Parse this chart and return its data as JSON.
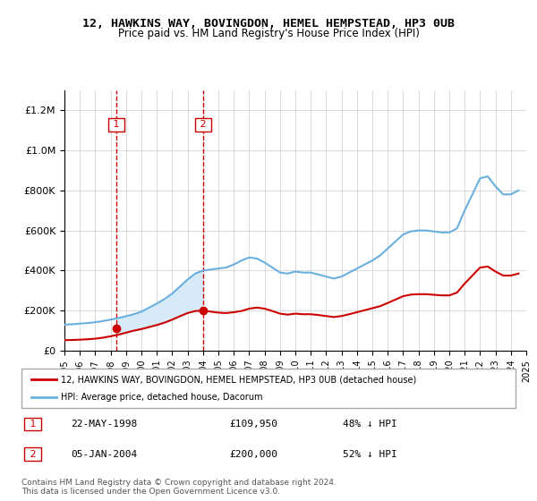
{
  "title": "12, HAWKINS WAY, BOVINGDON, HEMEL HEMPSTEAD, HP3 0UB",
  "subtitle": "Price paid vs. HM Land Registry's House Price Index (HPI)",
  "legend_line1": "12, HAWKINS WAY, BOVINGDON, HEMEL HEMPSTEAD, HP3 0UB (detached house)",
  "legend_line2": "HPI: Average price, detached house, Dacorum",
  "footer": "Contains HM Land Registry data © Crown copyright and database right 2024.\nThis data is licensed under the Open Government Licence v3.0.",
  "transaction1_label": "1",
  "transaction1_date": "22-MAY-1998",
  "transaction1_price": "£109,950",
  "transaction1_hpi": "48% ↓ HPI",
  "transaction2_label": "2",
  "transaction2_date": "05-JAN-2004",
  "transaction2_price": "£200,000",
  "transaction2_hpi": "52% ↓ HPI",
  "hpi_color": "#6ab0de",
  "price_color": "#cc0000",
  "shaded_color": "#d6eaf8",
  "dashed_color": "#cc0000",
  "background_color": "#ffffff",
  "hpi_x": [
    1995,
    1995.5,
    1996,
    1996.5,
    1997,
    1997.5,
    1998,
    1998.5,
    1999,
    1999.5,
    2000,
    2000.5,
    2001,
    2001.5,
    2002,
    2002.5,
    2003,
    2003.5,
    2004,
    2004.5,
    2005,
    2005.5,
    2006,
    2006.5,
    2007,
    2007.5,
    2008,
    2008.5,
    2009,
    2009.5,
    2010,
    2010.5,
    2011,
    2011.5,
    2012,
    2012.5,
    2013,
    2013.5,
    2014,
    2014.5,
    2015,
    2015.5,
    2016,
    2016.5,
    2017,
    2017.5,
    2018,
    2018.5,
    2019,
    2019.5,
    2020,
    2020.5,
    2021,
    2021.5,
    2022,
    2022.5,
    2023,
    2023.5,
    2024,
    2024.5
  ],
  "hpi_y": [
    130000,
    132000,
    135000,
    138000,
    142000,
    148000,
    155000,
    163000,
    172000,
    182000,
    195000,
    215000,
    235000,
    258000,
    285000,
    320000,
    355000,
    385000,
    400000,
    405000,
    410000,
    415000,
    430000,
    450000,
    465000,
    460000,
    440000,
    415000,
    390000,
    385000,
    395000,
    390000,
    390000,
    380000,
    370000,
    360000,
    370000,
    390000,
    410000,
    430000,
    450000,
    475000,
    510000,
    545000,
    580000,
    595000,
    600000,
    600000,
    595000,
    590000,
    590000,
    610000,
    700000,
    780000,
    860000,
    870000,
    820000,
    780000,
    780000,
    800000
  ],
  "price_x": [
    1995,
    1995.5,
    1996,
    1996.5,
    1997,
    1997.5,
    1998,
    1998.5,
    1999,
    1999.5,
    2000,
    2000.5,
    2001,
    2001.5,
    2002,
    2002.5,
    2003,
    2003.5,
    2004,
    2004.5,
    2005,
    2005.5,
    2006,
    2006.5,
    2007,
    2007.5,
    2008,
    2008.5,
    2009,
    2009.5,
    2010,
    2010.5,
    2011,
    2011.5,
    2012,
    2012.5,
    2013,
    2013.5,
    2014,
    2014.5,
    2015,
    2015.5,
    2016,
    2016.5,
    2017,
    2017.5,
    2018,
    2018.5,
    2019,
    2019.5,
    2020,
    2020.5,
    2021,
    2021.5,
    2022,
    2022.5,
    2023,
    2023.5,
    2024,
    2024.5
  ],
  "price_y": [
    52800,
    53500,
    55000,
    57000,
    60000,
    65000,
    72000,
    80000,
    90000,
    100000,
    108000,
    118000,
    128000,
    140000,
    155000,
    172000,
    188000,
    198000,
    200000,
    195000,
    190000,
    188000,
    192000,
    198000,
    210000,
    215000,
    210000,
    198000,
    185000,
    180000,
    185000,
    182000,
    182000,
    178000,
    173000,
    168000,
    173000,
    182000,
    192000,
    202000,
    212000,
    222000,
    238000,
    255000,
    272000,
    280000,
    282000,
    282000,
    279000,
    276000,
    276000,
    290000,
    335000,
    375000,
    415000,
    420000,
    395000,
    375000,
    375000,
    385000
  ],
  "transaction1_x": 1998.38,
  "transaction1_y": 109950,
  "transaction2_x": 2004.0,
  "transaction2_y": 200000,
  "shade_x1": 1998.38,
  "shade_x2": 2004.0,
  "xlim": [
    1995,
    2025
  ],
  "ylim": [
    0,
    1300000
  ],
  "yticks": [
    0,
    200000,
    400000,
    600000,
    800000,
    1000000,
    1200000
  ],
  "xticks": [
    1995,
    1996,
    1997,
    1998,
    1999,
    2000,
    2001,
    2002,
    2003,
    2004,
    2005,
    2006,
    2007,
    2008,
    2009,
    2010,
    2011,
    2012,
    2013,
    2014,
    2015,
    2016,
    2017,
    2018,
    2019,
    2020,
    2021,
    2022,
    2023,
    2024,
    2025
  ]
}
